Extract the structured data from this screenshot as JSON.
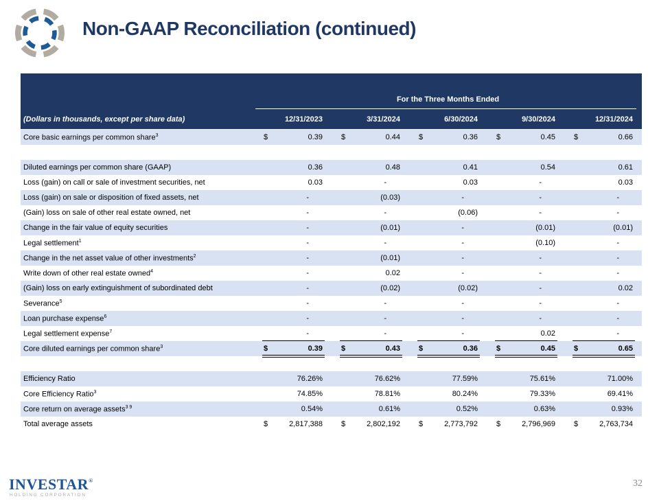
{
  "slide": {
    "title": "Non-GAAP Reconciliation (continued)",
    "page_number": "32"
  },
  "logo": {
    "name": "investar-swirl-logo",
    "blue": "#1E5A96",
    "gray": "#B2ABA1"
  },
  "footer": {
    "brand": "INVESTAR",
    "registered": "®",
    "sub_brand": "HOLDING CORPORATION"
  },
  "colors": {
    "header_navy": "#1F3864",
    "row_light_blue": "#D9E2F3",
    "title_navy": "#1F3864",
    "brand_blue": "#1F5495",
    "page_number_gray": "#8E8C7E"
  },
  "table": {
    "group_header": "For the Three Months Ended",
    "row_label_header": "(Dollars in thousands, except per share data)",
    "currency_symbol": "$",
    "columns": [
      "12/31/2023",
      "3/31/2024",
      "6/30/2024",
      "9/30/2024",
      "12/31/2024"
    ],
    "rows": [
      {
        "label": "Core basic earnings per common share",
        "sup": "3",
        "dollar": true,
        "shade": "blue",
        "values": [
          "0.39",
          "0.44",
          "0.36",
          "0.45",
          "0.66"
        ]
      },
      {
        "blank": true,
        "shade": "white"
      },
      {
        "label": "Diluted earnings per common share (GAAP)",
        "shade": "blue",
        "values": [
          "0.36",
          "0.48",
          "0.41",
          "0.54",
          "0.61"
        ]
      },
      {
        "label": "Loss (gain) on call or sale of investment securities, net",
        "shade": "white",
        "values": [
          "0.03",
          "-",
          "0.03",
          "-",
          "0.03"
        ]
      },
      {
        "label": "Loss (gain) on sale or disposition of fixed assets, net",
        "shade": "blue",
        "values": [
          "-",
          "(0.03)",
          "-",
          "-",
          "-"
        ]
      },
      {
        "label": "(Gain) loss on sale of other real estate owned, net",
        "shade": "white",
        "values": [
          "-",
          "-",
          "(0.06)",
          "-",
          "-"
        ]
      },
      {
        "label": "Change in the fair value of equity securities",
        "shade": "blue",
        "values": [
          "-",
          "(0.01)",
          "-",
          "(0.01)",
          "(0.01)"
        ]
      },
      {
        "label": "Legal settlement",
        "sup": "1",
        "shade": "white",
        "values": [
          "-",
          "-",
          "-",
          "(0.10)",
          "-"
        ]
      },
      {
        "label": "Change in the net asset value of other investments",
        "sup": "2",
        "shade": "blue",
        "values": [
          "-",
          "(0.01)",
          "-",
          "-",
          "-"
        ]
      },
      {
        "label": "Write down of other real estate owned",
        "sup": "4",
        "shade": "white",
        "values": [
          "-",
          "0.02",
          "-",
          "-",
          "-"
        ]
      },
      {
        "label": "(Gain) loss on early extinguishment of subordinated debt",
        "shade": "blue",
        "values": [
          "-",
          "(0.02)",
          "(0.02)",
          "-",
          "0.02"
        ]
      },
      {
        "label": "Severance",
        "sup": "5",
        "shade": "white",
        "values": [
          "-",
          "-",
          "-",
          "-",
          "-"
        ]
      },
      {
        "label": "Loan purchase expense",
        "sup": "6",
        "shade": "blue",
        "values": [
          "-",
          "-",
          "-",
          "-",
          "-"
        ]
      },
      {
        "label": "Legal settlement expense",
        "sup": "7",
        "shade": "white",
        "rule_below": true,
        "values": [
          "-",
          "-",
          "-",
          "0.02",
          "-"
        ]
      },
      {
        "label": "Core diluted earnings per common share",
        "sup": "3",
        "dollar": true,
        "bold": true,
        "shade": "blue",
        "double_below": true,
        "values": [
          "0.39",
          "0.43",
          "0.36",
          "0.45",
          "0.65"
        ]
      },
      {
        "blank": true,
        "shade": "white"
      },
      {
        "label": "Efficiency Ratio",
        "shade": "blue",
        "values": [
          "76.26%",
          "76.62%",
          "77.59%",
          "75.61%",
          "71.00%"
        ]
      },
      {
        "label": "Core Efficiency Ratio",
        "sup": "3",
        "shade": "white",
        "values": [
          "74.85%",
          "78.81%",
          "80.24%",
          "79.33%",
          "69.41%"
        ]
      },
      {
        "label": "Core return on average assets",
        "sup": "3 9",
        "shade": "blue",
        "values": [
          "0.54%",
          "0.61%",
          "0.52%",
          "0.63%",
          "0.93%"
        ]
      },
      {
        "label": "Total average assets",
        "dollar": true,
        "shade": "white",
        "values": [
          "2,817,388",
          "2,802,192",
          "2,773,792",
          "2,796,969",
          "2,763,734"
        ]
      }
    ]
  }
}
